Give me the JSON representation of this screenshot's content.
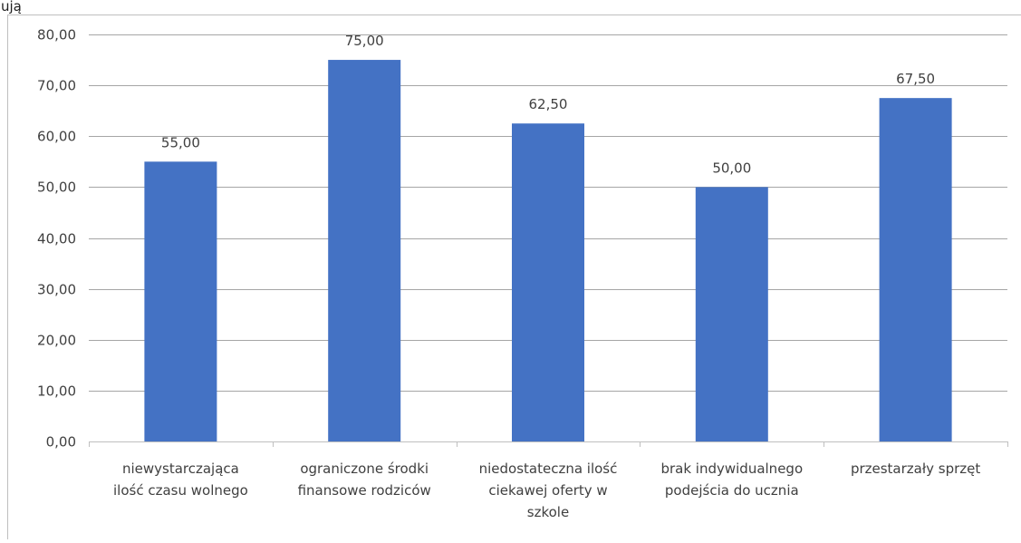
{
  "top_fragment": "ują",
  "chart_data": {
    "type": "bar",
    "title": "",
    "xlabel": "",
    "ylabel": "",
    "ylim": [
      0,
      80
    ],
    "yticks": [
      "0,00",
      "10,00",
      "20,00",
      "30,00",
      "40,00",
      "50,00",
      "60,00",
      "70,00",
      "80,00"
    ],
    "ytick_values": [
      0,
      10,
      20,
      30,
      40,
      50,
      60,
      70,
      80
    ],
    "categories": [
      [
        "niewystarczająca",
        "ilość czasu wolnego"
      ],
      [
        "ograniczone środki",
        "finansowe rodziców"
      ],
      [
        "niedostateczna ilość",
        "ciekawej oferty w",
        "szkole"
      ],
      [
        "brak indywidualnego",
        "podejścia do ucznia"
      ],
      [
        "przestarzały sprzęt"
      ]
    ],
    "values": [
      55.0,
      75.0,
      62.5,
      50.0,
      67.5
    ],
    "data_labels": [
      "55,00",
      "75,00",
      "62,50",
      "50,00",
      "67,50"
    ],
    "bar_color": "#4472C4",
    "grid": true,
    "legend": "none"
  }
}
